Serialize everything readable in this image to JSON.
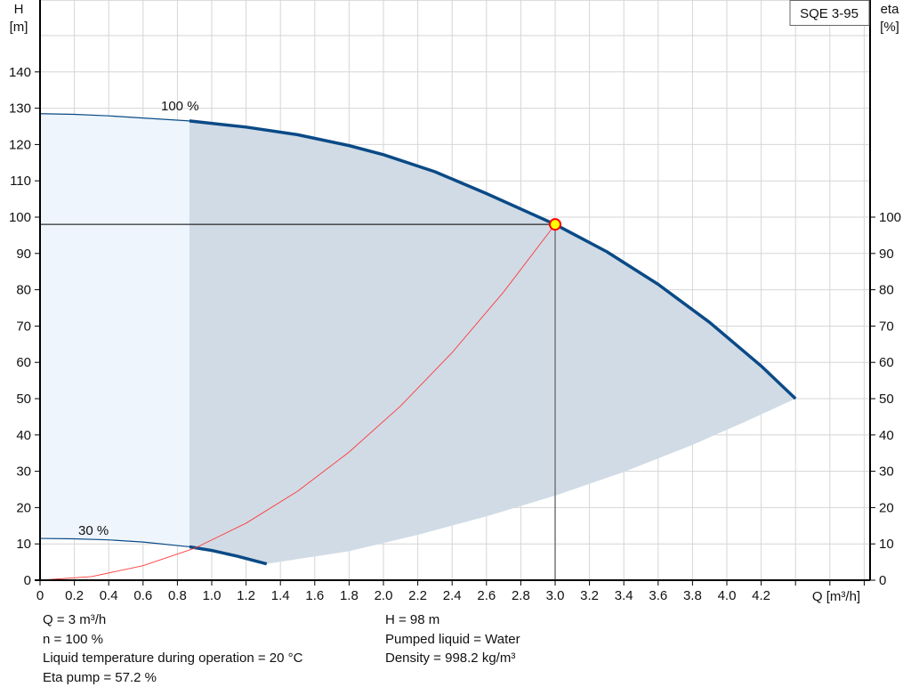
{
  "chart_data": {
    "type": "line",
    "title": "SQE 3-95",
    "xlabel": "Q [m³/h]",
    "ylabel": "H",
    "ylabel_unit": "[m]",
    "y2label": "eta",
    "y2label_unit": "[%]",
    "xlim": [
      0,
      4.8
    ],
    "ylim": [
      0,
      160
    ],
    "y2lim": [
      0,
      160
    ],
    "grid": true,
    "x_ticks": [
      "0",
      "0.2",
      "0.4",
      "0.6",
      "0.8",
      "1.0",
      "1.2",
      "1.4",
      "1.6",
      "1.8",
      "2.0",
      "2.2",
      "2.4",
      "2.6",
      "2.8",
      "3.0",
      "3.2",
      "3.4",
      "3.6",
      "3.8",
      "4.0",
      "4.2"
    ],
    "y_ticks": [
      0,
      10,
      20,
      30,
      40,
      50,
      60,
      70,
      80,
      90,
      100,
      110,
      120,
      130,
      140
    ],
    "y2_ticks": [
      0,
      10,
      20,
      30,
      40,
      50,
      60,
      70,
      80,
      90,
      100
    ],
    "series": [
      {
        "name": "100 %",
        "color": "#0a4a86",
        "x": [
          0,
          0.2,
          0.4,
          0.6,
          0.87,
          1.2,
          1.5,
          1.8,
          2.0,
          2.3,
          2.6,
          3.0,
          3.3,
          3.6,
          3.9,
          4.2,
          4.4
        ],
        "y": [
          128.5,
          128.3,
          127.9,
          127.3,
          126.5,
          124.8,
          122.7,
          119.7,
          117.2,
          112.5,
          106.5,
          98,
          90.5,
          81.5,
          71,
          59,
          50
        ]
      },
      {
        "name": "30 %",
        "color": "#0a4a86",
        "x": [
          0,
          0.2,
          0.4,
          0.6,
          0.87,
          1.0,
          1.15,
          1.32
        ],
        "y": [
          11.5,
          11.4,
          11.1,
          10.5,
          9.2,
          8.2,
          6.6,
          4.5
        ]
      },
      {
        "name": "",
        "color": "#ff3b3b",
        "x": [
          0,
          0.3,
          0.6,
          0.9,
          1.2,
          1.5,
          1.8,
          2.1,
          2.4,
          2.7,
          3.0
        ],
        "y": [
          0,
          1,
          4,
          8.8,
          15.7,
          24.5,
          35.3,
          48,
          62.7,
          79.4,
          98
        ]
      }
    ],
    "lower_limit": {
      "x": [
        1.32,
        1.8,
        2.2,
        2.6,
        3.0,
        3.4,
        3.8,
        4.1,
        4.4
      ],
      "y": [
        4.5,
        8,
        12.5,
        17.6,
        23.3,
        29.8,
        37.3,
        43.5,
        50
      ]
    },
    "operating_point": {
      "x": 3.0,
      "y": 98,
      "fill": "#ffff00",
      "stroke": "#ff0000"
    },
    "colors": {
      "region_light": "#eef5fc",
      "region_dark": "#d0dbe6",
      "grid": "#d6d6d6"
    }
  },
  "info": {
    "q": "Q = 3 m³/h",
    "n": "n = 100 %",
    "temp": "Liquid temperature during operation = 20 °C",
    "eta": "Eta pump = 57.2 %",
    "h": "H = 98 m",
    "liquid": "Pumped liquid = Water",
    "density": "Density = 998.2 kg/m³"
  }
}
